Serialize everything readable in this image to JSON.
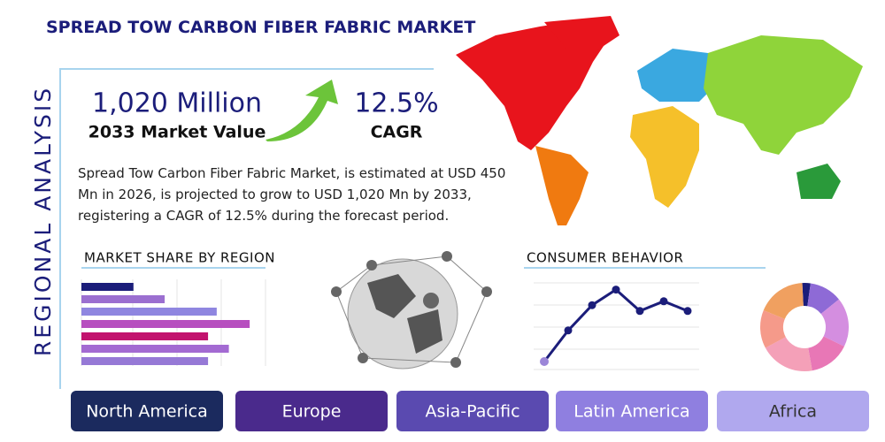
{
  "header": {
    "title": "SPREAD TOW CARBON FIBER FABRIC MARKET",
    "side_label": "REGIONAL ANALYSIS"
  },
  "stats": {
    "market_value": "1,020 Million",
    "market_value_label": "2033 Market Value",
    "cagr": "12.5%",
    "cagr_label": "CAGR"
  },
  "description": "Spread Tow Carbon Fiber Fabric Market, is estimated at USD 450 Mn in 2026, is projected to grow to USD 1,020 Mn by 2033, registering a CAGR of 12.5% during the forecast period.",
  "market_share": {
    "title": "MARKET SHARE BY REGION",
    "values": [
      30,
      48,
      78,
      97,
      73,
      85,
      73
    ],
    "colors": [
      "#1b1d7a",
      "#9b6fd0",
      "#8f86e0",
      "#b74fbf",
      "#c2136e",
      "#a36ad2",
      "#9679d6"
    ]
  },
  "consumer_behavior": {
    "title": "CONSUMER BEHAVIOR",
    "values": [
      10,
      42,
      68,
      84,
      62,
      72,
      62
    ],
    "color": "#1b1d7a"
  },
  "donut": {
    "values": [
      3,
      12,
      18,
      15,
      20,
      14,
      18
    ],
    "colors": [
      "#1b1d7a",
      "#8e6ad6",
      "#d48ee0",
      "#e877b6",
      "#f4a0b8",
      "#f59a8a",
      "#f0a060"
    ]
  },
  "regions": [
    "North America",
    "Europe",
    "Asia-Pacific",
    "Latin America",
    "Africa"
  ]
}
